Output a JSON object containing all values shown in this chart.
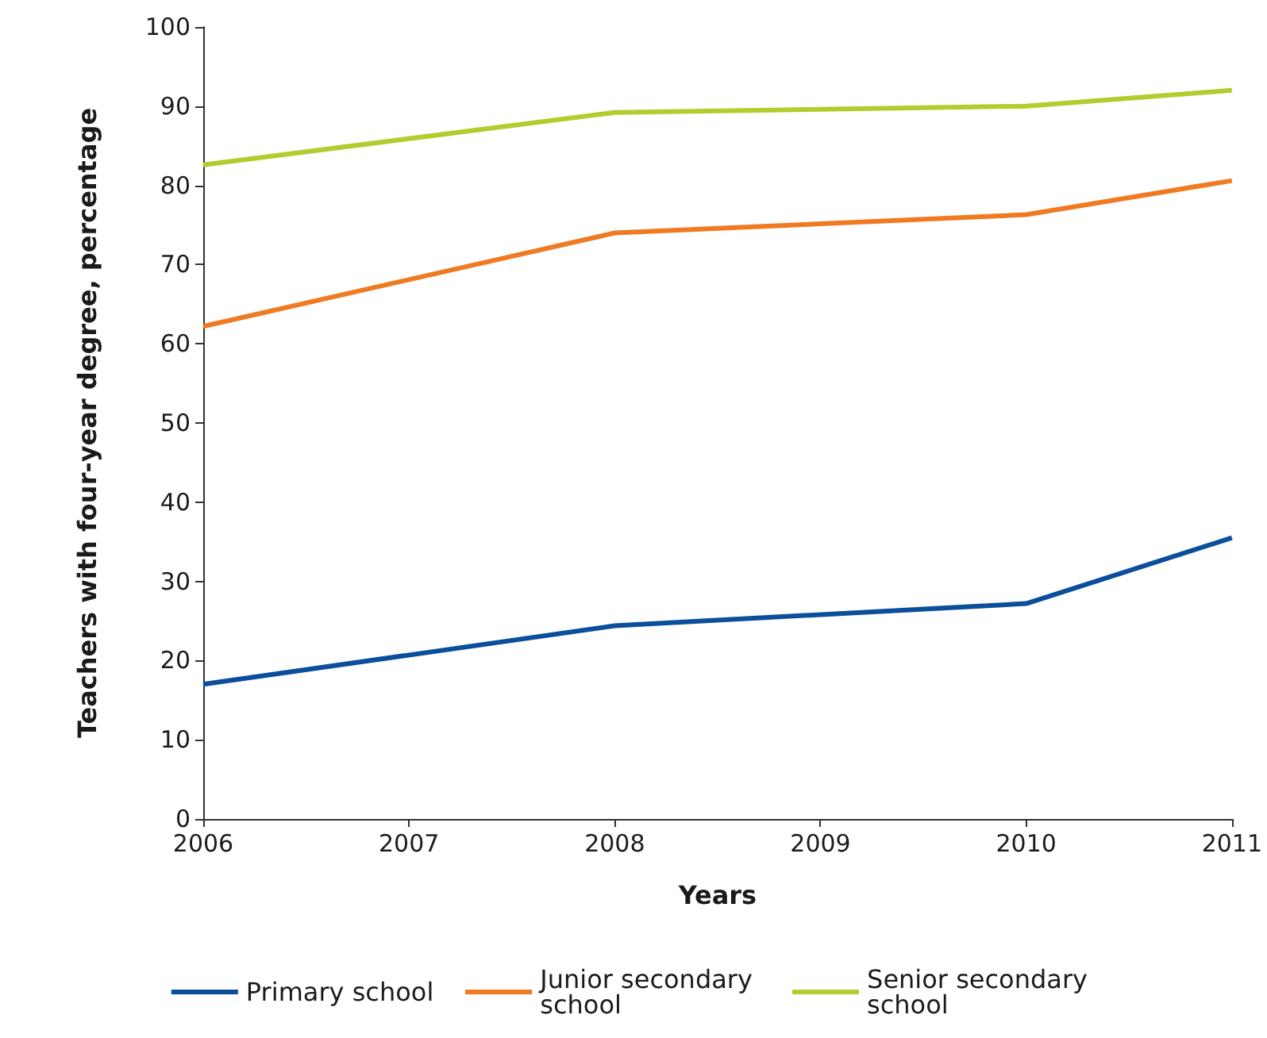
{
  "chart_data": {
    "type": "line",
    "xlabel": "Years",
    "ylabel": "Teachers with four-year degree, percentage",
    "x": [
      2006,
      2008,
      2010,
      2011
    ],
    "series": [
      {
        "name": "Primary school",
        "color": "#0b4f9c",
        "values": [
          17.0,
          24.4,
          27.2,
          35.5
        ]
      },
      {
        "name": "Junior secondary school",
        "color": "#f07a22",
        "values": [
          62.2,
          74.0,
          76.3,
          80.6
        ]
      },
      {
        "name": "Senior secondary school",
        "color": "#b5cc2e",
        "values": [
          82.6,
          89.2,
          90.0,
          92.0
        ]
      }
    ],
    "xlim": [
      2006,
      2011
    ],
    "xticks": [
      2006,
      2007,
      2008,
      2009,
      2010,
      2011
    ],
    "ylim": [
      0,
      100
    ],
    "yticks": [
      0,
      10,
      20,
      30,
      40,
      50,
      60,
      70,
      80,
      90,
      100
    ],
    "grid": false,
    "legend": "bottom",
    "marker": "none",
    "line_style": "solid"
  }
}
